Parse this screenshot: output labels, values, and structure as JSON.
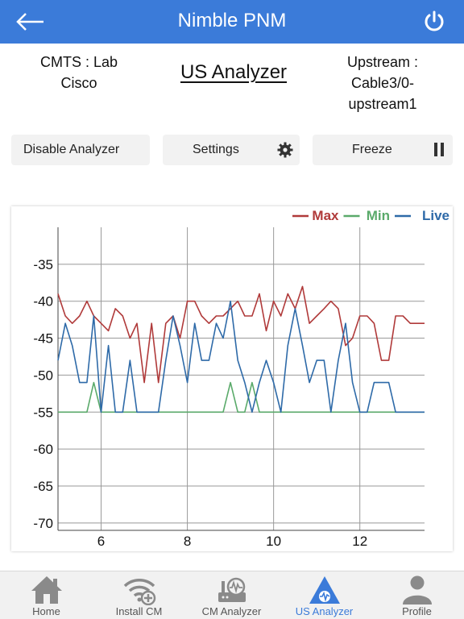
{
  "app": {
    "title": "Nimble PNM"
  },
  "info": {
    "cmts_line1": "CMTS : Lab",
    "cmts_line2": "Cisco",
    "page_title": "US Analyzer",
    "upstream_line1": "Upstream :",
    "upstream_line2": "Cable3/0-",
    "upstream_line3": "upstream1"
  },
  "buttons": {
    "disable": "Disable Analyzer",
    "settings": "Settings",
    "freeze": "Freeze"
  },
  "icons": {
    "back": "back-arrow-icon",
    "power": "power-icon",
    "settings": "gear-icon",
    "freeze": "pause-icon"
  },
  "colors": {
    "header": "#3b7bd9",
    "max": "#b03a3a",
    "min": "#5aaa6a",
    "live": "#2e6aa8",
    "active_nav": "#3b7bd9"
  },
  "chart_data": {
    "type": "line",
    "title": "",
    "xlabel": "",
    "ylabel": "",
    "xlim": [
      5.0,
      13.5
    ],
    "ylim": [
      -71,
      -30
    ],
    "xticks": [
      6,
      8,
      10,
      12
    ],
    "yticks": [
      -35,
      -40,
      -45,
      -50,
      -55,
      -60,
      -65,
      -70
    ],
    "grid": true,
    "legend_position": "top-right",
    "x": [
      5.0,
      5.17,
      5.33,
      5.5,
      5.67,
      5.83,
      6.0,
      6.17,
      6.33,
      6.5,
      6.67,
      6.83,
      7.0,
      7.17,
      7.33,
      7.5,
      7.67,
      7.83,
      8.0,
      8.17,
      8.33,
      8.5,
      8.67,
      8.83,
      9.0,
      9.17,
      9.33,
      9.5,
      9.67,
      9.83,
      10.0,
      10.17,
      10.33,
      10.5,
      10.67,
      10.83,
      11.0,
      11.17,
      11.33,
      11.5,
      11.67,
      11.83,
      12.0,
      12.17,
      12.33,
      12.5,
      12.67,
      12.83,
      13.0,
      13.17,
      13.33,
      13.5
    ],
    "series": [
      {
        "name": "Max",
        "values": [
          -39,
          -42,
          -43,
          -42,
          -40,
          -42,
          -43,
          -44,
          -41,
          -42,
          -45,
          -43,
          -51,
          -43,
          -51,
          -43,
          -42,
          -45,
          -40,
          -40,
          -42,
          -43,
          -42,
          -42,
          -41,
          -40,
          -42,
          -42,
          -39,
          -44,
          -40,
          -42,
          -39,
          -41,
          -38,
          -43,
          -42,
          -41,
          -40,
          -41,
          -46,
          -45,
          -42,
          -42,
          -43,
          -48,
          -48,
          -42,
          -42,
          -43,
          -43,
          -43
        ]
      },
      {
        "name": "Min",
        "values": [
          -55,
          -55,
          -55,
          -55,
          -55,
          -51,
          -55,
          -55,
          -55,
          -55,
          -55,
          -55,
          -55,
          -55,
          -55,
          -55,
          -55,
          -55,
          -55,
          -55,
          -55,
          -55,
          -55,
          -55,
          -51,
          -55,
          -55,
          -51,
          -55,
          -55,
          -55,
          -55,
          -55,
          -55,
          -55,
          -55,
          -55,
          -55,
          -55,
          -55,
          -55,
          -55,
          -55,
          -55,
          -55,
          -55,
          -55,
          -55,
          -55,
          -55,
          -55,
          -55
        ]
      },
      {
        "name": "Live",
        "values": [
          -48,
          -43,
          -46,
          -51,
          -51,
          -42,
          -55,
          -46,
          -55,
          -55,
          -48,
          -55,
          -55,
          -55,
          -55,
          -48,
          -42,
          -46,
          -51,
          -43,
          -48,
          -48,
          -43,
          -45,
          -40,
          -48,
          -51,
          -55,
          -51,
          -48,
          -51,
          -55,
          -46,
          -41,
          -46,
          -51,
          -48,
          -48,
          -55,
          -48,
          -43,
          -51,
          -55,
          -55,
          -51,
          -51,
          -51,
          -55,
          -55,
          -55,
          -55,
          -55
        ]
      }
    ]
  },
  "nav": [
    {
      "label": "Home",
      "icon": "home-icon"
    },
    {
      "label": "Install CM",
      "icon": "wifi-add-icon"
    },
    {
      "label": "CM Analyzer",
      "icon": "modem-analyzer-icon"
    },
    {
      "label": "US Analyzer",
      "icon": "spectrum-triangle-icon"
    },
    {
      "label": "Profile",
      "icon": "user-icon"
    }
  ]
}
